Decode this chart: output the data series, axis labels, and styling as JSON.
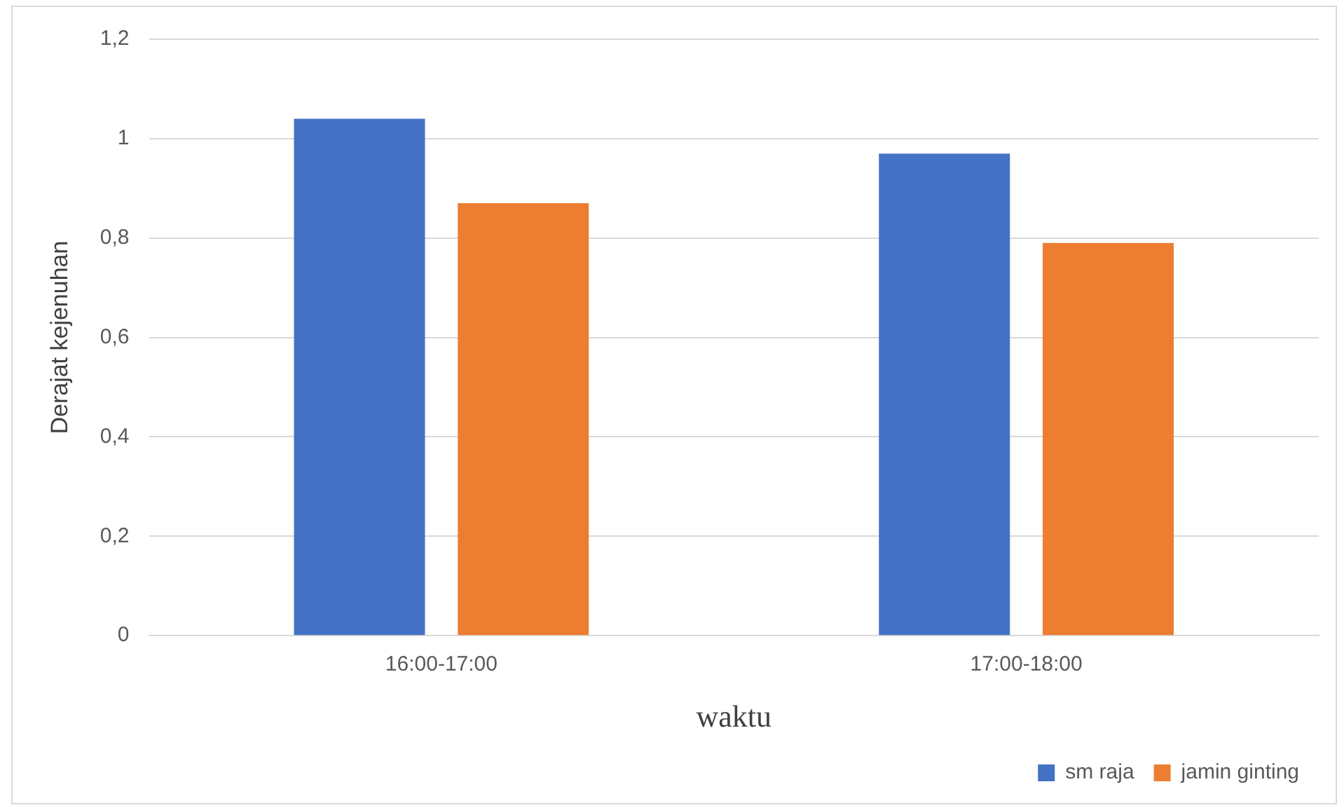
{
  "chart_data": {
    "type": "bar",
    "xlabel": "waktu",
    "ylabel": "Derajat kejenuhan",
    "categories": [
      "16:00-17:00",
      "17:00-18:00"
    ],
    "series": [
      {
        "name": "sm raja",
        "color": "#4472c4",
        "values": [
          1.04,
          0.97
        ]
      },
      {
        "name": "jamin ginting",
        "color": "#ed7d31",
        "values": [
          0.87,
          0.79
        ]
      }
    ],
    "ylim": [
      0,
      1.2
    ],
    "yticks": [
      0,
      {
        "value": 0.2,
        "label": "0,2"
      },
      {
        "value": 0.4,
        "label": "0,4"
      },
      {
        "value": 0.6,
        "label": "0,6"
      },
      {
        "value": 0.8,
        "label": "0,8"
      },
      1,
      {
        "value": 1.2,
        "label": "1,2"
      }
    ],
    "grid": "y",
    "legend": "bottom right"
  }
}
